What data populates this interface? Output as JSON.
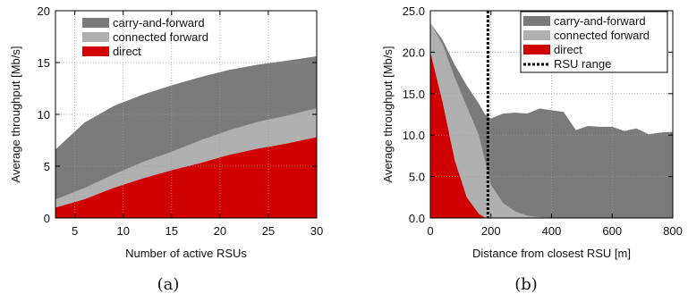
{
  "colors": {
    "carry": "#7a7a7a",
    "connected": "#b0b0b0",
    "direct": "#d00000",
    "range": "#000000",
    "grid": "#9a9a9a"
  },
  "chart_data": [
    {
      "type": "area",
      "stacked": true,
      "caption": "(a)",
      "xlabel": "Number of active RSUs",
      "ylabel": "Average throughput [Mb/s]",
      "xlim": [
        3,
        30
      ],
      "ylim": [
        0,
        20
      ],
      "xticks": [
        5,
        10,
        15,
        20,
        25,
        30
      ],
      "yticks": [
        0,
        5,
        10,
        15,
        20
      ],
      "ytick_labels": [
        "0",
        "5",
        "10",
        "15",
        "20"
      ],
      "grid": true,
      "legend_position": "top-right",
      "x": [
        3,
        6,
        9,
        12,
        15,
        18,
        21,
        24,
        27,
        30
      ],
      "series": [
        {
          "name": "carry-and-forward",
          "color_key": "carry",
          "cumulative": [
            6.6,
            9.2,
            10.8,
            11.9,
            12.8,
            13.6,
            14.3,
            14.8,
            15.2,
            15.6
          ]
        },
        {
          "name": "connected forward",
          "color_key": "connected",
          "cumulative": [
            1.8,
            2.9,
            4.2,
            5.4,
            6.4,
            7.5,
            8.5,
            9.3,
            9.9,
            10.6
          ]
        },
        {
          "name": "direct",
          "color_key": "direct",
          "cumulative": [
            1.0,
            1.8,
            2.9,
            3.8,
            4.6,
            5.3,
            6.1,
            6.7,
            7.2,
            7.8
          ]
        }
      ]
    },
    {
      "type": "area",
      "stacked": true,
      "caption": "(b)",
      "xlabel": "Distance from closest RSU [m]",
      "ylabel": "Average throughput [Mb/s]",
      "xlim": [
        0,
        800
      ],
      "ylim": [
        0,
        25
      ],
      "xticks": [
        0,
        200,
        400,
        600,
        800
      ],
      "yticks": [
        0,
        5,
        10,
        15,
        20,
        25
      ],
      "ytick_labels": [
        "0.0",
        "5.0",
        "10.0",
        "15.0",
        "20.0",
        "25.0"
      ],
      "grid": true,
      "legend_position": "top-right",
      "rsu_range": 190,
      "series": [
        {
          "name": "carry-and-forward",
          "color_key": "carry",
          "x": [
            0,
            40,
            80,
            120,
            160,
            180,
            200,
            240,
            280,
            320,
            360,
            400,
            440,
            480,
            520,
            560,
            600,
            640,
            680,
            720,
            760,
            800
          ],
          "cumulative": [
            23.5,
            21.5,
            18.5,
            16.0,
            13.8,
            12.5,
            12.0,
            12.6,
            12.7,
            12.6,
            13.2,
            13.0,
            12.8,
            10.6,
            11.1,
            11.0,
            11.0,
            10.5,
            10.8,
            10.1,
            10.3,
            10.4
          ]
        },
        {
          "name": "connected forward",
          "color_key": "connected",
          "x": [
            0,
            40,
            80,
            120,
            160,
            180,
            200,
            240,
            280,
            320,
            360,
            400,
            440,
            480
          ],
          "cumulative": [
            23.5,
            21.0,
            17.0,
            13.5,
            10.0,
            7.0,
            4.0,
            1.8,
            0.8,
            0.3,
            0.1,
            0.05,
            0.02,
            0
          ]
        },
        {
          "name": "direct",
          "color_key": "direct",
          "x": [
            0,
            40,
            80,
            120,
            160,
            180,
            190
          ],
          "cumulative": [
            20.0,
            14.0,
            7.0,
            2.5,
            0.5,
            0.05,
            0
          ]
        }
      ],
      "range_label": "RSU range"
    }
  ]
}
